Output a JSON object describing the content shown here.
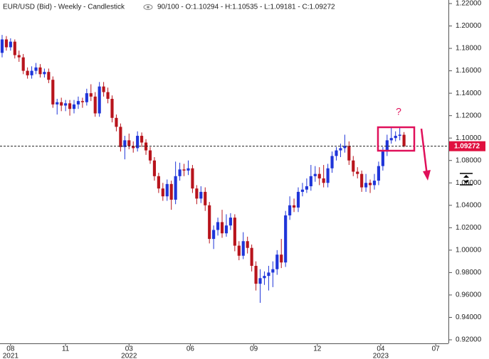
{
  "chart_data": {
    "type": "candlestick",
    "title": "EUR/USD (Bid) - Weekly - Candlestick",
    "subtitle": "90/100 - O:1.10294 - H:1.10535 - L:1.09181 - C:1.09272",
    "up_color": "#1f35d9",
    "down_color": "#b8141c",
    "current_price": 1.09272,
    "current_price_color": "#e0103f",
    "annotations": [
      "?"
    ],
    "xlim": [
      -0.5,
      105.5
    ],
    "ylim": [
      0.92,
      1.22
    ],
    "yticks": [
      {
        "value": 0.92,
        "label": "0.92000"
      },
      {
        "value": 0.94,
        "label": "0.94000"
      },
      {
        "value": 0.96,
        "label": "0.96000"
      },
      {
        "value": 0.98,
        "label": "0.98000"
      },
      {
        "value": 1.0,
        "label": "1.00000"
      },
      {
        "value": 1.02,
        "label": "1.02000"
      },
      {
        "value": 1.04,
        "label": "1.04000"
      },
      {
        "value": 1.06,
        "label": "1.06000"
      },
      {
        "value": 1.08,
        "label": "1.08000"
      },
      {
        "value": 1.1,
        "label": "1.10000"
      },
      {
        "value": 1.12,
        "label": "1.12000"
      },
      {
        "value": 1.14,
        "label": "1.14000"
      },
      {
        "value": 1.16,
        "label": "1.16000"
      },
      {
        "value": 1.18,
        "label": "1.18000"
      },
      {
        "value": 1.2,
        "label": "1.20000"
      },
      {
        "value": 1.22,
        "label": "1.22000"
      }
    ],
    "xticks": [
      {
        "value": 2,
        "label": "08"
      },
      {
        "value": 15,
        "label": "11"
      },
      {
        "value": 30,
        "label": "03"
      },
      {
        "value": 44.5,
        "label": "06"
      },
      {
        "value": 59.5,
        "label": "09"
      },
      {
        "value": 74.5,
        "label": "12"
      },
      {
        "value": 89.5,
        "label": "04"
      },
      {
        "value": 102.5,
        "label": "07"
      }
    ],
    "xtick_years": [
      {
        "value": 2,
        "label": "2021"
      },
      {
        "value": 30,
        "label": "2022"
      },
      {
        "value": 89.5,
        "label": "2023"
      }
    ],
    "x": [
      0,
      1,
      2,
      3,
      4,
      5,
      6,
      7,
      8,
      9,
      10,
      11,
      12,
      13,
      14,
      15,
      16,
      17,
      18,
      19,
      20,
      21,
      22,
      23,
      24,
      25,
      26,
      27,
      28,
      29,
      30,
      31,
      32,
      33,
      34,
      35,
      36,
      37,
      38,
      39,
      40,
      41,
      42,
      43,
      44,
      45,
      46,
      47,
      48,
      49,
      50,
      51,
      52,
      53,
      54,
      55,
      56,
      57,
      58,
      59,
      60,
      61,
      62,
      63,
      64,
      65,
      66,
      67,
      68,
      69,
      70,
      71,
      72,
      73,
      74,
      75,
      76,
      77,
      78,
      79,
      80,
      81,
      82,
      83,
      84,
      85,
      86,
      87,
      88,
      89,
      90,
      91,
      92,
      93,
      94,
      95
    ],
    "open": [
      1.176,
      1.188,
      1.181,
      1.186,
      1.174,
      1.172,
      1.16,
      1.156,
      1.16,
      1.163,
      1.157,
      1.159,
      1.152,
      1.13,
      1.132,
      1.129,
      1.131,
      1.126,
      1.13,
      1.133,
      1.132,
      1.14,
      1.137,
      1.122,
      1.146,
      1.141,
      1.135,
      1.118,
      1.11,
      1.092,
      1.098,
      1.093,
      1.091,
      1.102,
      1.096,
      1.089,
      1.08,
      1.066,
      1.055,
      1.048,
      1.059,
      1.045,
      1.066,
      1.072,
      1.071,
      1.073,
      1.055,
      1.046,
      1.052,
      1.04,
      1.01,
      1.018,
      1.025,
      1.015,
      1.022,
      1.029,
      1.004,
      0.995,
      1.008,
      1.002,
      0.986,
      0.97,
      0.975,
      0.977,
      0.98,
      0.983,
      0.996,
      0.989,
      1.031,
      1.04,
      1.038,
      1.052,
      1.054,
      1.057,
      1.066,
      1.068,
      1.064,
      1.06,
      1.073,
      1.084,
      1.089,
      1.091,
      1.093,
      1.08,
      1.07,
      1.068,
      1.056,
      1.06,
      1.058,
      1.062,
      1.075,
      1.088,
      1.098,
      1.1,
      1.102,
      1.10294
    ],
    "high": [
      1.192,
      1.191,
      1.189,
      1.188,
      1.178,
      1.175,
      1.163,
      1.164,
      1.167,
      1.166,
      1.162,
      1.162,
      1.155,
      1.135,
      1.136,
      1.134,
      1.134,
      1.134,
      1.137,
      1.136,
      1.144,
      1.148,
      1.141,
      1.15,
      1.15,
      1.145,
      1.138,
      1.121,
      1.113,
      1.102,
      1.104,
      1.097,
      1.106,
      1.105,
      1.099,
      1.092,
      1.083,
      1.069,
      1.06,
      1.063,
      1.062,
      1.079,
      1.078,
      1.077,
      1.08,
      1.076,
      1.058,
      1.057,
      1.056,
      1.043,
      1.022,
      1.029,
      1.036,
      1.032,
      1.033,
      1.032,
      1.008,
      1.016,
      1.012,
      1.005,
      0.99,
      0.983,
      0.981,
      0.986,
      0.99,
      1.0,
      1.01,
      1.035,
      1.048,
      1.046,
      1.056,
      1.06,
      1.064,
      1.076,
      1.075,
      1.074,
      1.076,
      1.077,
      1.088,
      1.092,
      1.095,
      1.103,
      1.097,
      1.084,
      1.074,
      1.071,
      1.068,
      1.063,
      1.068,
      1.079,
      1.092,
      1.103,
      1.109,
      1.106,
      1.11,
      1.10535
    ],
    "low": [
      1.172,
      1.178,
      1.178,
      1.171,
      1.168,
      1.157,
      1.153,
      1.153,
      1.157,
      1.154,
      1.154,
      1.149,
      1.127,
      1.121,
      1.124,
      1.124,
      1.12,
      1.122,
      1.126,
      1.127,
      1.129,
      1.133,
      1.119,
      1.119,
      1.137,
      1.131,
      1.114,
      1.106,
      1.088,
      1.081,
      1.09,
      1.087,
      1.088,
      1.092,
      1.085,
      1.077,
      1.062,
      1.051,
      1.044,
      1.044,
      1.036,
      1.041,
      1.062,
      1.066,
      1.067,
      1.051,
      1.041,
      1.042,
      1.035,
      1.006,
      1.001,
      1.013,
      1.011,
      1.012,
      1.018,
      0.999,
      0.991,
      0.992,
      0.997,
      0.981,
      0.964,
      0.953,
      0.969,
      0.964,
      0.967,
      0.978,
      0.984,
      0.985,
      1.027,
      1.034,
      1.034,
      1.048,
      1.051,
      1.053,
      1.061,
      1.058,
      1.056,
      1.056,
      1.069,
      1.08,
      1.083,
      1.087,
      1.076,
      1.066,
      1.064,
      1.052,
      1.052,
      1.051,
      1.054,
      1.058,
      1.071,
      1.084,
      1.095,
      1.097,
      1.098,
      1.09181
    ],
    "close": [
      1.188,
      1.181,
      1.186,
      1.174,
      1.172,
      1.16,
      1.156,
      1.16,
      1.163,
      1.157,
      1.159,
      1.152,
      1.13,
      1.132,
      1.129,
      1.131,
      1.126,
      1.13,
      1.133,
      1.132,
      1.14,
      1.137,
      1.122,
      1.146,
      1.141,
      1.135,
      1.118,
      1.11,
      1.092,
      1.098,
      1.093,
      1.091,
      1.102,
      1.096,
      1.089,
      1.08,
      1.066,
      1.055,
      1.048,
      1.059,
      1.045,
      1.066,
      1.072,
      1.071,
      1.073,
      1.055,
      1.046,
      1.052,
      1.04,
      1.01,
      1.018,
      1.025,
      1.015,
      1.022,
      1.029,
      1.004,
      0.995,
      1.008,
      1.002,
      0.986,
      0.97,
      0.975,
      0.977,
      0.98,
      0.983,
      0.996,
      0.989,
      1.031,
      1.04,
      1.038,
      1.052,
      1.054,
      1.057,
      1.066,
      1.068,
      1.064,
      1.06,
      1.073,
      1.084,
      1.089,
      1.091,
      1.093,
      1.08,
      1.07,
      1.068,
      1.056,
      1.06,
      1.058,
      1.062,
      1.075,
      1.088,
      1.098,
      1.1,
      1.102,
      1.103,
      1.09272
    ]
  }
}
